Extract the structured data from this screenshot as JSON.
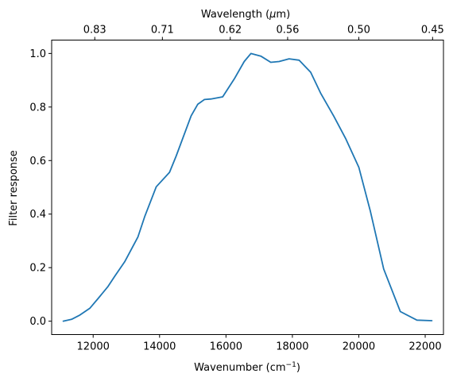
{
  "chart_data": {
    "type": "line",
    "xlabel_base": "Wavenumber (cm",
    "xlabel_sup": "−1",
    "xlabel_end": ")",
    "ylabel": "Filter response",
    "top_axis_label_base": "Wavelength (",
    "top_axis_label_mu": "μ",
    "top_axis_label_end": "m)",
    "xlim": [
      10750,
      22550
    ],
    "ylim": [
      -0.05,
      1.05
    ],
    "x_ticks": [
      12000,
      14000,
      16000,
      18000,
      20000,
      22000
    ],
    "x_tick_labels": [
      "12000",
      "14000",
      "16000",
      "18000",
      "20000",
      "22000"
    ],
    "y_ticks": [
      0.0,
      0.2,
      0.4,
      0.6,
      0.8,
      1.0
    ],
    "y_tick_labels": [
      "0.0",
      "0.2",
      "0.4",
      "0.6",
      "0.8",
      "1.0"
    ],
    "top_ticks": [
      0.83,
      0.71,
      0.62,
      0.56,
      0.5,
      0.45
    ],
    "top_tick_labels": [
      "0.83",
      "0.71",
      "0.62",
      "0.56",
      "0.50",
      "0.45"
    ],
    "grid": false,
    "series": [
      {
        "color": "#1f77b4",
        "x": [
          11100,
          11350,
          11600,
          11900,
          12150,
          12450,
          12650,
          12950,
          13350,
          13550,
          13900,
          14300,
          14500,
          14950,
          15150,
          15350,
          15550,
          15900,
          16250,
          16550,
          16750,
          17050,
          17350,
          17600,
          17900,
          18200,
          18550,
          18850,
          19250,
          19600,
          20000,
          20350,
          20750,
          21250,
          21750,
          22200
        ],
        "y": [
          0.0,
          0.007,
          0.023,
          0.048,
          0.085,
          0.13,
          0.168,
          0.222,
          0.315,
          0.39,
          0.502,
          0.556,
          0.617,
          0.767,
          0.81,
          0.828,
          0.83,
          0.838,
          0.905,
          0.97,
          1.0,
          0.99,
          0.967,
          0.97,
          0.98,
          0.975,
          0.93,
          0.852,
          0.765,
          0.683,
          0.575,
          0.41,
          0.195,
          0.036,
          0.004,
          0.002
        ]
      }
    ]
  }
}
